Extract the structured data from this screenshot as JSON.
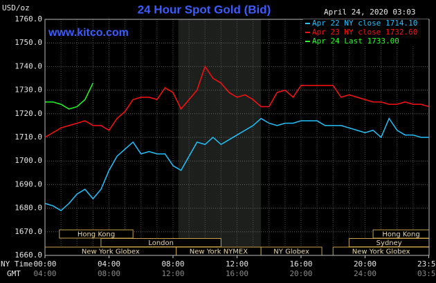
{
  "chart_data": {
    "type": "line",
    "title": "24 Hour Spot Gold (Bid)",
    "subtitle": "April 24, 2020 03:03",
    "watermark": "www.kitco.com",
    "y_label": "USD/oz",
    "x_label": "NY Time",
    "x2_label": "GMT",
    "xlim": [
      0,
      24
    ],
    "ylim": [
      1660,
      1760
    ],
    "yticks": [
      {
        "value": 1660,
        "label": "1660.0"
      },
      {
        "value": 1670,
        "label": "1670.0"
      },
      {
        "value": 1680,
        "label": "1680.0"
      },
      {
        "value": 1690,
        "label": "1690.0"
      },
      {
        "value": 1700,
        "label": "1700.0"
      },
      {
        "value": 1710,
        "label": "1710.0"
      },
      {
        "value": 1720,
        "label": "1720.0"
      },
      {
        "value": 1730,
        "label": "1730.0"
      },
      {
        "value": 1740,
        "label": "1740.0"
      },
      {
        "value": 1750,
        "label": "1750.0"
      },
      {
        "value": 1760,
        "label": "1760.0"
      }
    ],
    "xticks": [
      {
        "value": 0,
        "label": "00:00"
      },
      {
        "value": 4,
        "label": "04:00"
      },
      {
        "value": 8,
        "label": "08:00"
      },
      {
        "value": 12,
        "label": "12:00"
      },
      {
        "value": 16,
        "label": "16:00"
      },
      {
        "value": 20,
        "label": "20:00"
      },
      {
        "value": 23.98,
        "label": "23:59"
      }
    ],
    "x2ticks": [
      {
        "value": 0,
        "label": "04:00"
      },
      {
        "value": 4,
        "label": "08:00"
      },
      {
        "value": 8,
        "label": "12:00"
      },
      {
        "value": 12,
        "label": "16:00"
      },
      {
        "value": 16,
        "label": "20:00"
      },
      {
        "value": 20,
        "label": "24:00"
      },
      {
        "value": 23.98,
        "label": "03:59"
      }
    ],
    "grid": true,
    "shaded": [
      8.33,
      13.5
    ],
    "sessions": [
      {
        "name": "Hong Kong",
        "start": 0.9,
        "end": 5.5,
        "row": 0
      },
      {
        "name": "Hong Kong",
        "start": 20.5,
        "end": 24,
        "row": 0
      },
      {
        "name": "London",
        "start": 3.5,
        "end": 11,
        "row": 1
      },
      {
        "name": "Sydney",
        "start": 19,
        "end": 24,
        "row": 1
      },
      {
        "name": "New York Globex",
        "start": 0,
        "end": 8.2,
        "row": 2
      },
      {
        "name": "New York NYMEX",
        "start": 8.2,
        "end": 13.5,
        "row": 2
      },
      {
        "name": "NY Globex",
        "start": 13.5,
        "end": 17.3,
        "row": 2
      },
      {
        "name": "New York Globex",
        "start": 18,
        "end": 24,
        "row": 2
      }
    ],
    "x": [
      0,
      0.5,
      1,
      1.5,
      2,
      2.5,
      3,
      3.5,
      4,
      4.5,
      5,
      5.5,
      6,
      6.5,
      7,
      7.5,
      8,
      8.5,
      9,
      9.5,
      10,
      10.5,
      11,
      11.5,
      12,
      12.5,
      13,
      13.5,
      14,
      14.5,
      15,
      15.5,
      16,
      16.5,
      17,
      17.5,
      18,
      18.5,
      19,
      19.5,
      20,
      20.5,
      21,
      21.5,
      22,
      22.5,
      23,
      23.5,
      24
    ],
    "series": [
      {
        "name": "Apr 22 NY close 1714.10",
        "color": "#22c4ff",
        "values": [
          1682,
          1681,
          1679,
          1682,
          1686,
          1688,
          1684,
          1688,
          1696,
          1702,
          1705,
          1708,
          1703,
          1704,
          1703,
          1703,
          1698,
          1696,
          1702,
          1708,
          1707,
          1710,
          1707,
          1709,
          1711,
          1713,
          1715,
          1718,
          1716,
          1715,
          1716,
          1716,
          1717,
          1717,
          1717,
          1715,
          1715,
          1715,
          1714,
          1713,
          1712,
          1713,
          1710,
          1718,
          1713,
          1711,
          1711,
          1710,
          1710
        ]
      },
      {
        "name": "Apr 23 NY close 1732.60",
        "color": "#ff1010",
        "values": [
          1710,
          1712,
          1714,
          1715,
          1716,
          1717,
          1715,
          1715,
          1713,
          1718,
          1721,
          1726,
          1727,
          1727,
          1726,
          1731,
          1729,
          1722,
          1726,
          1730,
          1740,
          1735,
          1733,
          1729,
          1727,
          1728,
          1726,
          1723,
          1723,
          1729,
          1730,
          1727,
          1732,
          1732,
          1732,
          1732,
          1732,
          1727,
          1728,
          1727,
          1726,
          1725,
          1725,
          1724,
          1724,
          1725,
          1724,
          1724,
          1723
        ]
      },
      {
        "name": "Apr 24 Last 1733.00",
        "color": "#22ff22",
        "values": [
          1725,
          1725,
          1724,
          1722,
          1723,
          1726,
          1733,
          null,
          null,
          null,
          null,
          null,
          null,
          null,
          null,
          null,
          null,
          null,
          null,
          null,
          null,
          null,
          null,
          null,
          null,
          null,
          null,
          null,
          null,
          null,
          null,
          null,
          null,
          null,
          null,
          null,
          null,
          null,
          null,
          null,
          null,
          null,
          null,
          null,
          null,
          null,
          null,
          null,
          null
        ]
      }
    ]
  }
}
